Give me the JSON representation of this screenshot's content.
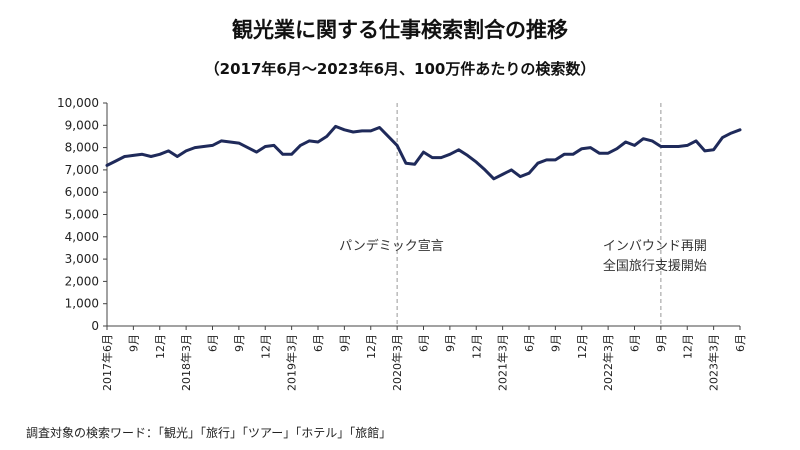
{
  "chart_data": {
    "type": "line",
    "title": "観光業に関する仕事検索割合の推移",
    "subtitle": "（2017年6月～2023年6月、100万件あたりの検索数）",
    "ylim": [
      0,
      10000
    ],
    "y_ticks": [
      "0",
      "1,000",
      "2,000",
      "3,000",
      "4,000",
      "5,000",
      "6,000",
      "7,000",
      "8,000",
      "9,000",
      "10,000"
    ],
    "x_tick_labels": [
      "2017年6月",
      "9月",
      "12月",
      "2018年3月",
      "6月",
      "9月",
      "12月",
      "2019年3月",
      "6月",
      "9月",
      "12月",
      "2020年3月",
      "6月",
      "9月",
      "12月",
      "2021年3月",
      "6月",
      "9月",
      "12月",
      "2022年3月",
      "6月",
      "9月",
      "12月",
      "2023年3月",
      "6月"
    ],
    "color": "#1f2a5a",
    "series": [
      {
        "values": [
          7200,
          7400,
          7600,
          7650,
          7700,
          7600,
          7700,
          7850,
          7600,
          7850,
          8000,
          8050,
          8100,
          8300,
          8250,
          8200,
          8000,
          7800,
          8050,
          8100,
          7700,
          7700,
          8100,
          8300,
          8250,
          8500,
          8950,
          8800,
          8700,
          8750,
          8750,
          8900,
          8500,
          8100,
          7300,
          7250,
          7800,
          7550,
          7550,
          7700,
          7900,
          7650,
          7350,
          7000,
          6600,
          6800,
          7000,
          6700,
          6850,
          7300,
          7450,
          7450,
          7700,
          7700,
          7950,
          8000,
          7750,
          7750,
          7950,
          8250,
          8100,
          8400,
          8300,
          8050,
          8050,
          8050,
          8100,
          8300,
          7850,
          7900,
          8450,
          8650,
          8800
        ]
      }
    ],
    "annotations": [
      {
        "x_index": 33,
        "lines": [
          "パンデミック宣言"
        ]
      },
      {
        "x_index": 63,
        "lines": [
          "インバウンド再開",
          "全国旅行支援開始"
        ]
      }
    ],
    "footnote": "調査対象の検索ワード：「観光」「旅行」「ツアー」「ホテル」「旅館」"
  }
}
